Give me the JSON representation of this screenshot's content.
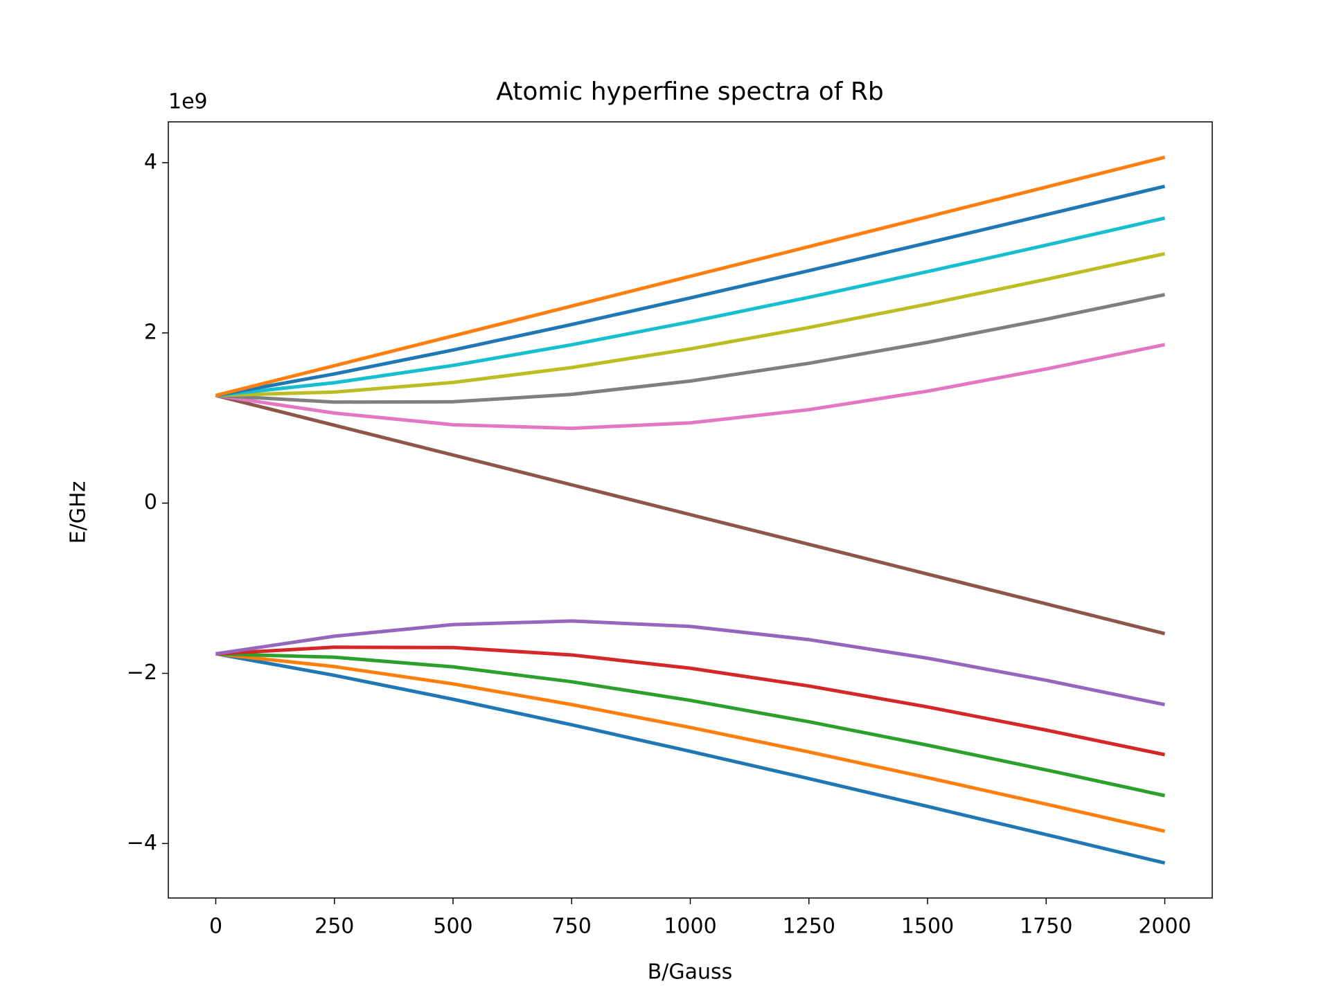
{
  "chart_data": {
    "type": "line",
    "title": "Atomic hyperfine spectra of Rb",
    "x_label": "B/Gauss",
    "y_label": "E/GHz",
    "y_offset_label": "1e9",
    "x": [
      0,
      250,
      500,
      750,
      1000,
      1250,
      1500,
      1750,
      2000
    ],
    "series": [
      {
        "color": "#1f77b4",
        "values": [
          -1.771,
          -2.024,
          -2.305,
          -2.605,
          -2.917,
          -3.237,
          -3.564,
          -3.895,
          -4.229
        ]
      },
      {
        "color": "#ff7f0e",
        "values": [
          -1.771,
          -1.921,
          -2.124,
          -2.367,
          -2.636,
          -2.924,
          -3.226,
          -3.537,
          -3.855
        ]
      },
      {
        "color": "#2ca02c",
        "values": [
          -1.771,
          -1.811,
          -1.924,
          -2.099,
          -2.318,
          -2.569,
          -2.844,
          -3.135,
          -3.437
        ]
      },
      {
        "color": "#d62728",
        "values": [
          -1.771,
          -1.693,
          -1.697,
          -1.784,
          -1.94,
          -2.149,
          -2.395,
          -2.667,
          -2.956
        ]
      },
      {
        "color": "#9467bd",
        "values": [
          -1.771,
          -1.564,
          -1.427,
          -1.385,
          -1.449,
          -1.604,
          -1.822,
          -2.082,
          -2.368
        ]
      },
      {
        "color": "#8c564b",
        "values": [
          1.265,
          0.915,
          0.565,
          0.215,
          -0.135,
          -0.484,
          -0.834,
          -1.184,
          -1.534
        ]
      },
      {
        "color": "#e377c2",
        "values": [
          1.265,
          1.058,
          0.921,
          0.879,
          0.943,
          1.098,
          1.316,
          1.576,
          1.862
        ]
      },
      {
        "color": "#7f7f7f",
        "values": [
          1.265,
          1.187,
          1.191,
          1.278,
          1.434,
          1.643,
          1.889,
          2.161,
          2.45
        ]
      },
      {
        "color": "#bcbd22",
        "values": [
          1.265,
          1.305,
          1.418,
          1.593,
          1.812,
          2.063,
          2.338,
          2.629,
          2.931
        ]
      },
      {
        "color": "#17becf",
        "values": [
          1.265,
          1.415,
          1.618,
          1.861,
          2.13,
          2.418,
          2.72,
          3.031,
          3.349
        ]
      },
      {
        "color": "#1f77b4",
        "values": [
          1.265,
          1.518,
          1.799,
          2.099,
          2.411,
          2.731,
          3.058,
          3.389,
          3.723
        ]
      },
      {
        "color": "#ff7f0e",
        "values": [
          1.265,
          1.615,
          1.965,
          2.315,
          2.665,
          3.014,
          3.364,
          3.714,
          4.064
        ]
      }
    ],
    "xlim": [
      -100,
      2100
    ],
    "xticks": [
      0,
      250,
      500,
      750,
      1000,
      1250,
      1500,
      1750,
      2000
    ],
    "ylim": [
      -4.64,
      4.48
    ],
    "yticks": [
      {
        "value": -4,
        "label": "−4"
      },
      {
        "value": -2,
        "label": "−2"
      },
      0,
      2,
      4
    ],
    "grid": false
  }
}
